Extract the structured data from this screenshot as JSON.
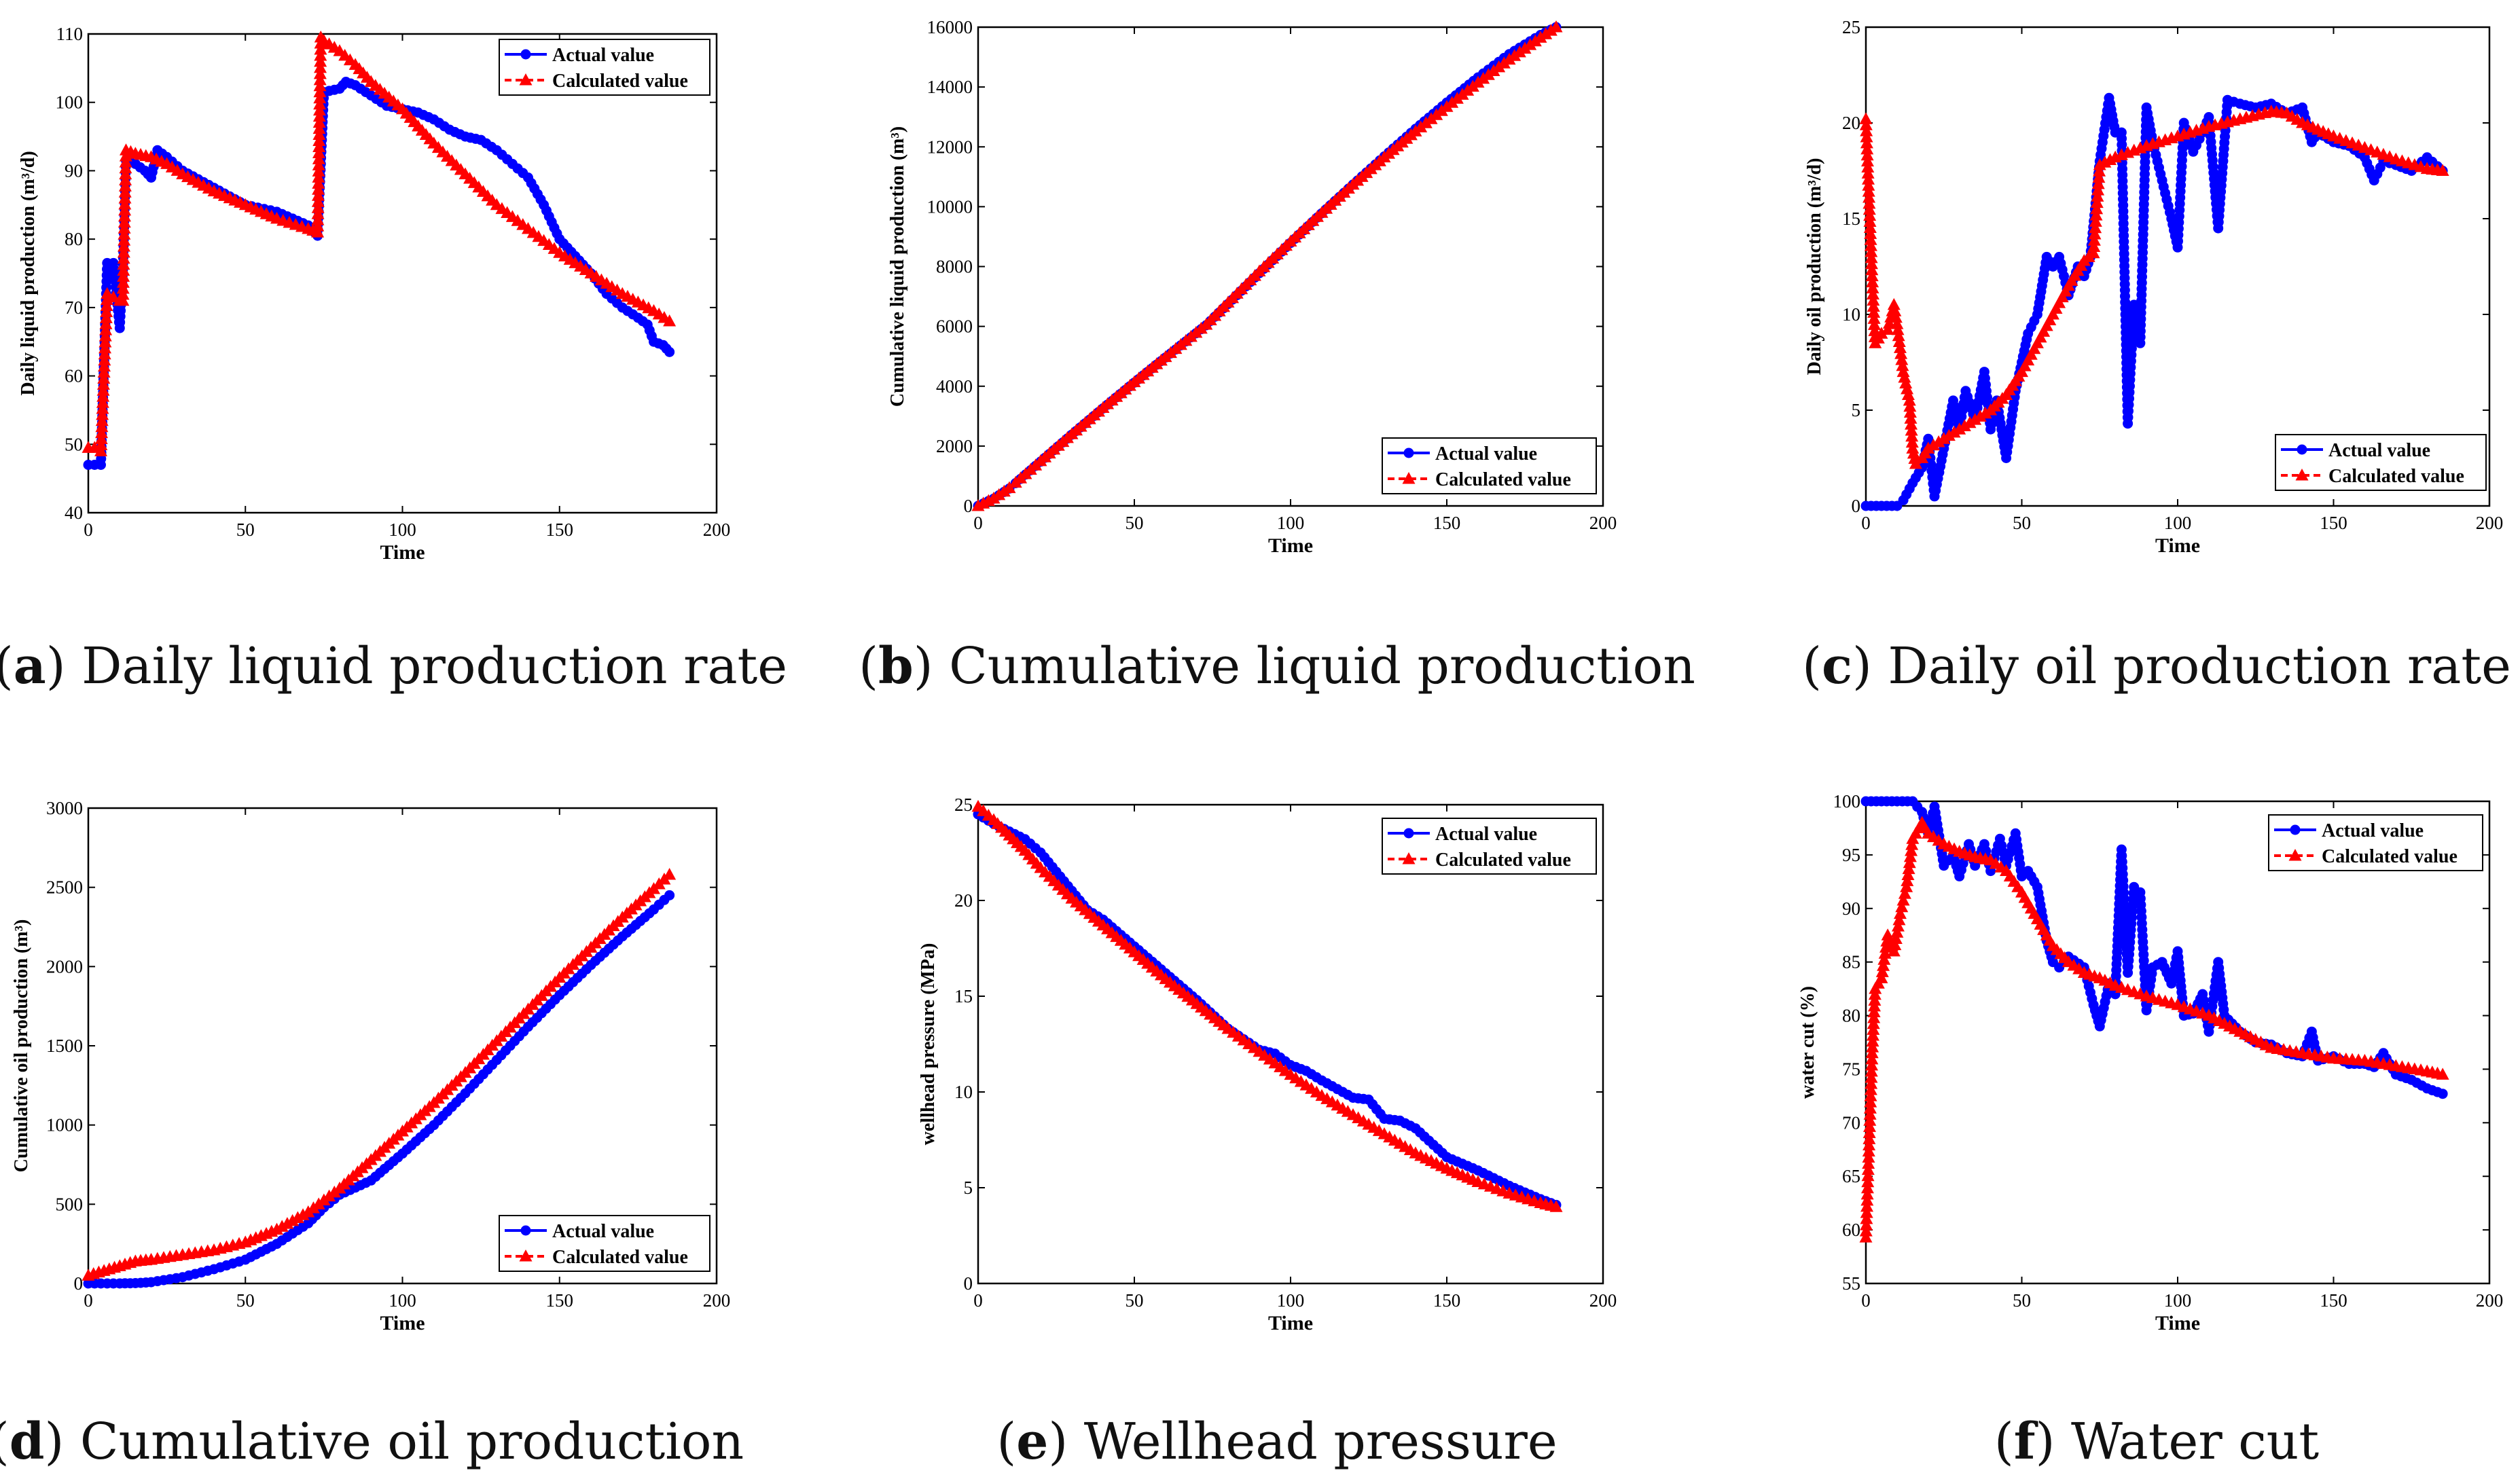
{
  "colors": {
    "actual": "#0000ff",
    "calculated": "#ff0000",
    "axis": "#000000"
  },
  "captions": [
    {
      "letter": "a",
      "text": " Daily liquid production rate"
    },
    {
      "letter": "b",
      "text": " Cumulative liquid production"
    },
    {
      "letter": "c",
      "text": " Daily oil production rate"
    },
    {
      "letter": "d",
      "text": " Cumulative oil production"
    },
    {
      "letter": "e",
      "text": " Wellhead pressure"
    },
    {
      "letter": "f",
      "text": " Water cut"
    }
  ],
  "chart_data": [
    {
      "id": "a",
      "type": "line",
      "xlabel": "Time",
      "ylabel": "Daily liquid production (m³/d)",
      "xlim": [
        0,
        200
      ],
      "ylim": [
        40,
        110
      ],
      "xticks": [
        "0",
        "50",
        "100",
        "150",
        "200"
      ],
      "yticks": [
        "40",
        "50",
        "60",
        "70",
        "80",
        "90",
        "100",
        "110"
      ],
      "legend_position": "top-right",
      "series": [
        {
          "name": "Actual value",
          "style": "solid-circle",
          "x": [
            0,
            2,
            4,
            6,
            8,
            10,
            11,
            12,
            15,
            18,
            20,
            22,
            25,
            30,
            40,
            50,
            60,
            70,
            72,
            73,
            75,
            80,
            82,
            85,
            90,
            95,
            100,
            105,
            110,
            115,
            120,
            125,
            130,
            135,
            140,
            145,
            150,
            155,
            160,
            165,
            170,
            175,
            178,
            180,
            183,
            185
          ],
          "y": [
            47,
            47,
            47,
            76.5,
            76.5,
            67,
            75.5,
            91.5,
            91,
            90,
            89,
            93,
            92,
            90,
            87.5,
            85,
            84,
            82,
            81,
            80.5,
            101.5,
            102,
            103,
            102.5,
            101,
            99.5,
            99,
            98.5,
            97.5,
            96,
            95,
            94.5,
            93,
            91,
            89,
            85,
            80,
            77.5,
            75,
            72,
            70,
            68.5,
            67.5,
            65,
            64.5,
            63.5
          ]
        },
        {
          "name": "Calculated value",
          "style": "dashed-triangle",
          "x": [
            0,
            2,
            4,
            6,
            8,
            10,
            11,
            12,
            15,
            20,
            25,
            30,
            40,
            50,
            60,
            70,
            73,
            74,
            75,
            80,
            85,
            90,
            100,
            110,
            120,
            130,
            140,
            150,
            160,
            170,
            180,
            185
          ],
          "y": [
            49.5,
            49.5,
            49,
            72,
            71.5,
            71,
            71,
            93,
            92.5,
            92,
            91,
            89.5,
            87,
            85,
            83,
            81.5,
            81,
            109.5,
            109,
            107.5,
            105.5,
            103,
            99,
            94,
            89.5,
            85,
            81.5,
            78,
            75,
            72,
            69.5,
            68
          ]
        }
      ]
    },
    {
      "id": "b",
      "type": "line",
      "xlabel": "Time",
      "ylabel": "Cumulative liquid production (m³)",
      "xlim": [
        0,
        200
      ],
      "ylim": [
        0,
        16000
      ],
      "xticks": [
        "0",
        "50",
        "100",
        "150",
        "200"
      ],
      "yticks": [
        "0",
        "2000",
        "4000",
        "6000",
        "8000",
        "10000",
        "12000",
        "14000",
        "16000"
      ],
      "legend_position": "bottom-right",
      "series": [
        {
          "name": "Actual value",
          "style": "solid-circle",
          "x": [
            0,
            5,
            10,
            12,
            20,
            30,
            40,
            50,
            60,
            73,
            80,
            90,
            100,
            110,
            120,
            130,
            140,
            150,
            160,
            170,
            180,
            185
          ],
          "y": [
            0,
            240,
            580,
            760,
            1480,
            2380,
            3260,
            4120,
            4960,
            6040,
            6750,
            7780,
            8790,
            9780,
            10740,
            11680,
            12600,
            13480,
            14320,
            15100,
            15740,
            16000
          ]
        },
        {
          "name": "Calculated value",
          "style": "dashed-triangle",
          "x": [
            0,
            5,
            10,
            12,
            20,
            30,
            40,
            50,
            60,
            73,
            80,
            90,
            100,
            110,
            120,
            130,
            140,
            150,
            160,
            170,
            180,
            185
          ],
          "y": [
            0,
            250,
            600,
            780,
            1500,
            2400,
            3280,
            4140,
            4980,
            6060,
            6800,
            7840,
            8840,
            9800,
            10740,
            11650,
            12520,
            13340,
            14150,
            14920,
            15650,
            16000
          ]
        }
      ]
    },
    {
      "id": "c",
      "type": "line",
      "xlabel": "Time",
      "ylabel": "Daily oil production (m³/d)",
      "xlim": [
        0,
        200
      ],
      "ylim": [
        0,
        25
      ],
      "xticks": [
        "0",
        "50",
        "100",
        "150",
        "200"
      ],
      "yticks": [
        "0",
        "5",
        "10",
        "15",
        "20",
        "25"
      ],
      "legend_position": "bottom-right",
      "series": [
        {
          "name": "Actual value",
          "style": "solid-circle",
          "x": [
            0,
            5,
            10,
            12,
            15,
            18,
            20,
            22,
            25,
            28,
            30,
            32,
            35,
            38,
            40,
            42,
            45,
            48,
            50,
            52,
            55,
            58,
            60,
            62,
            65,
            68,
            70,
            72,
            75,
            78,
            80,
            82,
            84,
            86,
            88,
            90,
            92,
            95,
            98,
            100,
            102,
            105,
            108,
            110,
            113,
            116,
            120,
            125,
            130,
            135,
            140,
            143,
            145,
            150,
            155,
            160,
            163,
            166,
            170,
            175,
            180,
            185
          ],
          "y": [
            0,
            0,
            0,
            0.3,
            1.2,
            2,
            3.5,
            0.5,
            3,
            5.5,
            4,
            6,
            4.5,
            7,
            4,
            5.5,
            2.5,
            6,
            7.5,
            9,
            10,
            13,
            12.5,
            13,
            11,
            12.5,
            12,
            13,
            18,
            21.3,
            19.5,
            19.5,
            4.3,
            10.5,
            8.5,
            20.8,
            19,
            17,
            15,
            13.5,
            20,
            18.5,
            19.5,
            20.3,
            14.5,
            21.2,
            21,
            20.8,
            21,
            20.5,
            20.8,
            19,
            19.5,
            19,
            18.8,
            18.2,
            17,
            18,
            17.8,
            17.5,
            18.2,
            17.5
          ]
        },
        {
          "name": "Calculated value",
          "style": "dashed-triangle",
          "x": [
            0,
            2,
            3,
            5,
            7,
            9,
            10,
            12,
            14,
            15,
            16,
            18,
            20,
            25,
            30,
            35,
            40,
            45,
            50,
            55,
            60,
            65,
            70,
            73,
            75,
            80,
            90,
            100,
            110,
            120,
            130,
            135,
            140,
            150,
            160,
            170,
            180,
            185
          ],
          "y": [
            20.2,
            12,
            8.5,
            9,
            9.2,
            10.5,
            9.5,
            7,
            5.5,
            3,
            2.2,
            2.5,
            3,
            3.5,
            4,
            4.5,
            5,
            5.8,
            7,
            8.5,
            10,
            11.5,
            12.8,
            13.2,
            17.8,
            18.2,
            18.8,
            19.3,
            19.8,
            20.2,
            20.6,
            20.5,
            20,
            19.3,
            18.7,
            18.1,
            17.6,
            17.5
          ]
        }
      ]
    },
    {
      "id": "d",
      "type": "line",
      "xlabel": "Time",
      "ylabel": "Cumulative oil production (m³)",
      "xlim": [
        0,
        200
      ],
      "ylim": [
        0,
        3000
      ],
      "xticks": [
        "0",
        "50",
        "100",
        "150",
        "200"
      ],
      "yticks": [
        "0",
        "500",
        "1000",
        "1500",
        "2000",
        "2500",
        "3000"
      ],
      "legend_position": "bottom-right",
      "series": [
        {
          "name": "Actual value",
          "style": "solid-circle",
          "x": [
            0,
            10,
            15,
            20,
            30,
            40,
            50,
            60,
            70,
            75,
            80,
            90,
            100,
            110,
            120,
            130,
            140,
            150,
            160,
            170,
            180,
            185
          ],
          "y": [
            0,
            0,
            2,
            8,
            40,
            90,
            150,
            250,
            380,
            480,
            560,
            650,
            820,
            1000,
            1200,
            1410,
            1620,
            1820,
            2010,
            2190,
            2360,
            2450
          ]
        },
        {
          "name": "Calculated value",
          "style": "dashed-triangle",
          "x": [
            0,
            5,
            10,
            15,
            20,
            30,
            40,
            50,
            60,
            70,
            80,
            90,
            100,
            110,
            120,
            130,
            140,
            150,
            160,
            170,
            180,
            185
          ],
          "y": [
            50,
            80,
            110,
            140,
            150,
            180,
            210,
            260,
            340,
            450,
            600,
            780,
            960,
            1140,
            1330,
            1530,
            1730,
            1930,
            2120,
            2310,
            2490,
            2580
          ]
        }
      ]
    },
    {
      "id": "e",
      "type": "line",
      "xlabel": "Time",
      "ylabel": "wellhead pressure (MPa)",
      "xlim": [
        0,
        200
      ],
      "ylim": [
        0,
        25
      ],
      "xticks": [
        "0",
        "50",
        "100",
        "150",
        "200"
      ],
      "yticks": [
        "0",
        "5",
        "10",
        "15",
        "20",
        "25"
      ],
      "legend_position": "top-right",
      "series": [
        {
          "name": "Actual value",
          "style": "solid-circle",
          "x": [
            0,
            5,
            10,
            15,
            20,
            25,
            30,
            35,
            40,
            50,
            60,
            70,
            80,
            90,
            95,
            100,
            105,
            110,
            120,
            125,
            130,
            135,
            140,
            150,
            160,
            170,
            180,
            185
          ],
          "y": [
            24.5,
            24,
            23.6,
            23.2,
            22.5,
            21.5,
            20.5,
            19.5,
            19,
            17.6,
            16.2,
            14.8,
            13.3,
            12.2,
            12,
            11.4,
            11.1,
            10.6,
            9.7,
            9.6,
            8.6,
            8.5,
            8.1,
            6.6,
            5.9,
            5.1,
            4.4,
            4.1
          ]
        },
        {
          "name": "Calculated value",
          "style": "dashed-triangle",
          "x": [
            0,
            5,
            10,
            15,
            20,
            30,
            40,
            50,
            60,
            70,
            80,
            90,
            100,
            110,
            120,
            130,
            140,
            150,
            160,
            170,
            180,
            185
          ],
          "y": [
            24.9,
            24.2,
            23.4,
            22.6,
            21.7,
            20.1,
            18.7,
            17.3,
            15.9,
            14.6,
            13.3,
            12.1,
            10.9,
            9.8,
            8.8,
            7.8,
            6.8,
            6.0,
            5.3,
            4.7,
            4.2,
            4.0
          ]
        }
      ]
    },
    {
      "id": "f",
      "type": "line",
      "xlabel": "Time",
      "ylabel": "water cut (%)",
      "xlim": [
        0,
        200
      ],
      "ylim": [
        55,
        100
      ],
      "xticks": [
        "0",
        "50",
        "100",
        "150",
        "200"
      ],
      "yticks": [
        "55",
        "60",
        "65",
        "70",
        "75",
        "80",
        "85",
        "90",
        "95",
        "100"
      ],
      "legend_position": "top-right",
      "series": [
        {
          "name": "Actual value",
          "style": "solid-circle",
          "x": [
            0,
            5,
            10,
            15,
            18,
            20,
            22,
            25,
            28,
            30,
            33,
            35,
            38,
            40,
            43,
            45,
            48,
            50,
            52,
            55,
            58,
            60,
            62,
            65,
            70,
            73,
            75,
            78,
            80,
            82,
            84,
            86,
            88,
            90,
            92,
            95,
            98,
            100,
            102,
            105,
            108,
            110,
            113,
            115,
            120,
            125,
            130,
            135,
            140,
            143,
            145,
            150,
            155,
            160,
            163,
            166,
            170,
            175,
            180,
            185
          ],
          "y": [
            100,
            100,
            100,
            100,
            99,
            97,
            99.5,
            94,
            95,
            93,
            96,
            94,
            96,
            93.5,
            96.5,
            94,
            97,
            93,
            93.5,
            92,
            87,
            85,
            84.5,
            85.5,
            84.5,
            81,
            79,
            83,
            82,
            95.5,
            84,
            92,
            91.5,
            80.5,
            84.5,
            85,
            83,
            86,
            80,
            80.2,
            82,
            78.5,
            85,
            80,
            78.5,
            77.5,
            77.3,
            76.5,
            76.2,
            78.5,
            75.8,
            76.2,
            75.5,
            75.5,
            75.2,
            76.5,
            74.5,
            74,
            73.2,
            72.7
          ]
        },
        {
          "name": "Calculated value",
          "style": "dashed-triangle",
          "x": [
            0,
            2,
            3,
            5,
            7,
            9,
            11,
            13,
            15,
            18,
            20,
            25,
            30,
            35,
            40,
            45,
            50,
            55,
            60,
            65,
            70,
            75,
            80,
            90,
            100,
            110,
            120,
            130,
            140,
            150,
            160,
            170,
            180,
            185
          ],
          "y": [
            59.3,
            76.5,
            82.5,
            83.5,
            87.5,
            86,
            89.5,
            92,
            96.5,
            98,
            97,
            96,
            95.3,
            94.8,
            94.5,
            93.5,
            91.5,
            89,
            86.5,
            85,
            84,
            83.5,
            82.8,
            81.8,
            81,
            80,
            78.5,
            77,
            76.5,
            76,
            75.8,
            75.3,
            74.8,
            74.5
          ]
        }
      ]
    }
  ]
}
